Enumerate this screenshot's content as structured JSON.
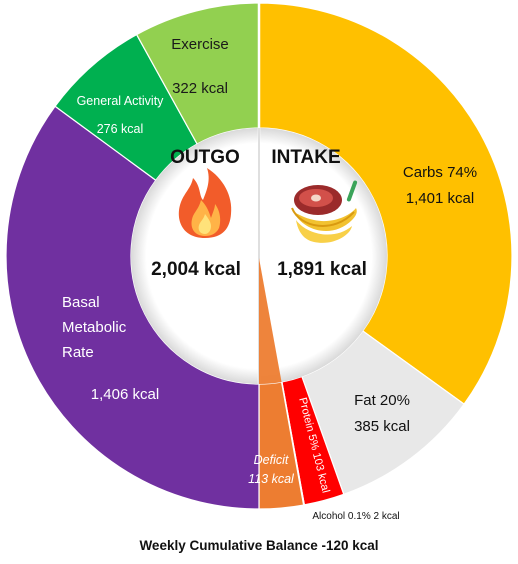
{
  "chart_data": {
    "type": "donut",
    "halves": {
      "outgo": {
        "title": "OUTGO",
        "total": "2,004 kcal"
      },
      "intake": {
        "title": "INTAKE",
        "total": "1,891 kcal"
      }
    },
    "segments": [
      {
        "key": "carbs",
        "side": "intake",
        "value": 1401,
        "color": "#FFC000",
        "label_lines": [
          "Carbs 74%",
          "1,401 kcal"
        ]
      },
      {
        "key": "fat",
        "side": "intake",
        "value": 385,
        "color": "#E8E8E8",
        "label_lines": [
          "Fat 20%",
          "385 kcal"
        ]
      },
      {
        "key": "protein",
        "side": "intake",
        "value": 103,
        "color": "#FF0000",
        "label_lines": [
          "Protein 5% 103 kcal"
        ]
      },
      {
        "key": "alcohol",
        "side": "intake",
        "value": 2,
        "color": "#7F7F7F",
        "label_lines": [
          "Alcohol 0.1% 2 kcal"
        ]
      },
      {
        "key": "deficit",
        "side": "outgo",
        "value": 113,
        "color": "#ED7D31",
        "label_lines": [
          "Deficit",
          "113 kcal"
        ]
      },
      {
        "key": "basal",
        "side": "outgo",
        "value": 1406,
        "color": "#7030A0",
        "label_lines": [
          "Basal",
          "Metabolic",
          "Rate",
          "1,406 kcal"
        ]
      },
      {
        "key": "general",
        "side": "outgo",
        "value": 276,
        "color": "#00B050",
        "label_lines": [
          "General Activity",
          "276 kcal"
        ]
      },
      {
        "key": "exercise",
        "side": "outgo",
        "value": 322,
        "color": "#92D050",
        "label_lines": [
          "Exercise",
          "322 kcal"
        ]
      }
    ],
    "footer": "Weekly Cumulative Balance -120 kcal"
  },
  "icons": {
    "outgo": "flame-icon",
    "intake": "food-bowl-icon"
  }
}
